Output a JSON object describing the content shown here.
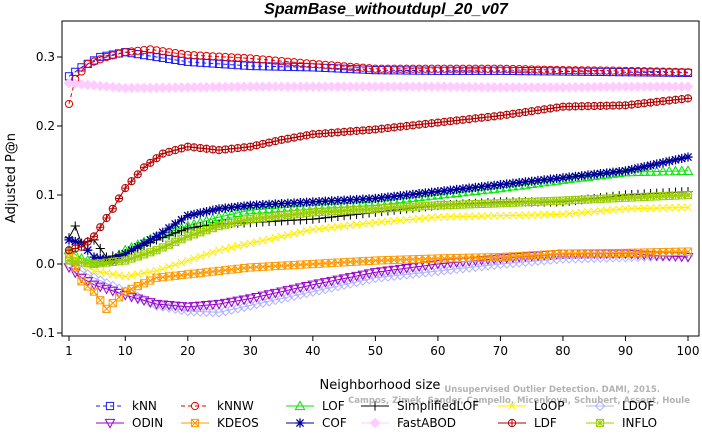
{
  "chart_data": {
    "type": "line",
    "title": "SpamBase_withoutdupl_20_v07",
    "xlabel": "Neighborhood size",
    "ylabel": "Adjusted P@n",
    "xlim": [
      1,
      100
    ],
    "ylim": [
      -0.1,
      0.33
    ],
    "x_ticks": [
      1,
      10,
      20,
      30,
      40,
      50,
      60,
      70,
      80,
      90,
      100
    ],
    "y_ticks": [
      -0.1,
      0.0,
      0.1,
      0.2,
      0.3
    ],
    "y_tick_labels": [
      "-0.1",
      "0.0",
      "0.1",
      "0.2",
      "0.3"
    ],
    "grid": false,
    "legend_position": "bottom",
    "credit_lines": [
      "Campos, Zimek, Sander, Campello, Micenkova, Schubert, Assent, Houle",
      "Unsupervised Outlier Detection. DAMI, 2015."
    ],
    "series": [
      {
        "name": "kNN",
        "color": "#1a1aff",
        "marker": "square",
        "dashed": true,
        "points": [
          [
            1,
            0.272
          ],
          [
            3,
            0.285
          ],
          [
            6,
            0.3
          ],
          [
            10,
            0.307
          ],
          [
            15,
            0.3
          ],
          [
            20,
            0.293
          ],
          [
            30,
            0.287
          ],
          [
            40,
            0.285
          ],
          [
            50,
            0.281
          ],
          [
            60,
            0.28
          ],
          [
            70,
            0.28
          ],
          [
            80,
            0.279
          ],
          [
            90,
            0.278
          ],
          [
            100,
            0.277
          ]
        ]
      },
      {
        "name": "kNNW",
        "color": "#e60000",
        "marker": "circle",
        "dashed": true,
        "points": [
          [
            1,
            0.232
          ],
          [
            2,
            0.268
          ],
          [
            4,
            0.29
          ],
          [
            7,
            0.3
          ],
          [
            10,
            0.307
          ],
          [
            14,
            0.311
          ],
          [
            20,
            0.303
          ],
          [
            30,
            0.298
          ],
          [
            40,
            0.29
          ],
          [
            50,
            0.283
          ],
          [
            60,
            0.283
          ],
          [
            70,
            0.283
          ],
          [
            80,
            0.281
          ],
          [
            90,
            0.28
          ],
          [
            100,
            0.278
          ]
        ]
      },
      {
        "name": "LOF",
        "color": "#00e600",
        "marker": "triangle-up",
        "points": [
          [
            1,
            0.02
          ],
          [
            3,
            0.008
          ],
          [
            5,
            0.002
          ],
          [
            8,
            0.006
          ],
          [
            10,
            0.02
          ],
          [
            15,
            0.04
          ],
          [
            20,
            0.055
          ],
          [
            25,
            0.068
          ],
          [
            30,
            0.078
          ],
          [
            40,
            0.085
          ],
          [
            50,
            0.09
          ],
          [
            60,
            0.1
          ],
          [
            70,
            0.11
          ],
          [
            80,
            0.122
          ],
          [
            90,
            0.133
          ],
          [
            100,
            0.135
          ]
        ]
      },
      {
        "name": "SimplifiedLOF",
        "color": "#000000",
        "marker": "plus",
        "points": [
          [
            1,
            0.038
          ],
          [
            2,
            0.055
          ],
          [
            3,
            0.03
          ],
          [
            5,
            0.035
          ],
          [
            7,
            0.01
          ],
          [
            10,
            0.015
          ],
          [
            15,
            0.035
          ],
          [
            20,
            0.052
          ],
          [
            25,
            0.058
          ],
          [
            30,
            0.06
          ],
          [
            40,
            0.065
          ],
          [
            50,
            0.075
          ],
          [
            60,
            0.085
          ],
          [
            70,
            0.09
          ],
          [
            80,
            0.09
          ],
          [
            90,
            0.1
          ],
          [
            100,
            0.105
          ]
        ]
      },
      {
        "name": "LoOP",
        "color": "#ffee00",
        "marker": "x",
        "points": [
          [
            1,
            0.015
          ],
          [
            5,
            -0.01
          ],
          [
            10,
            -0.018
          ],
          [
            15,
            -0.01
          ],
          [
            20,
            0.005
          ],
          [
            25,
            0.02
          ],
          [
            30,
            0.03
          ],
          [
            40,
            0.05
          ],
          [
            50,
            0.06
          ],
          [
            60,
            0.068
          ],
          [
            70,
            0.07
          ],
          [
            80,
            0.072
          ],
          [
            90,
            0.08
          ],
          [
            100,
            0.082
          ]
        ]
      },
      {
        "name": "LDOF",
        "color": "#b3b3ff",
        "marker": "diamond",
        "points": [
          [
            1,
            0.0
          ],
          [
            5,
            -0.02
          ],
          [
            10,
            -0.04
          ],
          [
            15,
            -0.06
          ],
          [
            20,
            -0.068
          ],
          [
            25,
            -0.07
          ],
          [
            30,
            -0.06
          ],
          [
            40,
            -0.04
          ],
          [
            50,
            -0.02
          ],
          [
            60,
            -0.01
          ],
          [
            70,
            0.0
          ],
          [
            80,
            0.008
          ],
          [
            90,
            0.01
          ],
          [
            100,
            0.012
          ]
        ]
      },
      {
        "name": "ODIN",
        "color": "#9900cc",
        "marker": "triangle-down",
        "points": [
          [
            1,
            -0.005
          ],
          [
            3,
            -0.02
          ],
          [
            5,
            -0.03
          ],
          [
            10,
            -0.045
          ],
          [
            15,
            -0.058
          ],
          [
            20,
            -0.062
          ],
          [
            25,
            -0.058
          ],
          [
            30,
            -0.05
          ],
          [
            40,
            -0.03
          ],
          [
            50,
            -0.012
          ],
          [
            60,
            0.0
          ],
          [
            70,
            0.008
          ],
          [
            80,
            0.015
          ],
          [
            90,
            0.015
          ],
          [
            100,
            0.01
          ]
        ]
      },
      {
        "name": "KDEOS",
        "color": "#ff9900",
        "marker": "square-x",
        "points": [
          [
            1,
            0.015
          ],
          [
            3,
            -0.025
          ],
          [
            5,
            -0.04
          ],
          [
            7,
            -0.065
          ],
          [
            10,
            -0.04
          ],
          [
            15,
            -0.02
          ],
          [
            20,
            -0.015
          ],
          [
            25,
            -0.01
          ],
          [
            30,
            -0.005
          ],
          [
            40,
            0.0
          ],
          [
            50,
            0.005
          ],
          [
            60,
            0.008
          ],
          [
            70,
            0.01
          ],
          [
            80,
            0.015
          ],
          [
            90,
            0.016
          ],
          [
            100,
            0.018
          ]
        ]
      },
      {
        "name": "COF",
        "color": "#000099",
        "marker": "asterisk",
        "points": [
          [
            1,
            0.035
          ],
          [
            3,
            0.03
          ],
          [
            5,
            0.01
          ],
          [
            8,
            0.005
          ],
          [
            10,
            0.015
          ],
          [
            15,
            0.04
          ],
          [
            20,
            0.07
          ],
          [
            25,
            0.08
          ],
          [
            30,
            0.085
          ],
          [
            40,
            0.09
          ],
          [
            50,
            0.095
          ],
          [
            60,
            0.105
          ],
          [
            70,
            0.115
          ],
          [
            80,
            0.125
          ],
          [
            90,
            0.135
          ],
          [
            100,
            0.155
          ]
        ]
      },
      {
        "name": "FastABOD",
        "color": "#ffccff",
        "marker": "diamond-filled",
        "points": [
          [
            1,
            0.262
          ],
          [
            10,
            0.255
          ],
          [
            20,
            0.256
          ],
          [
            30,
            0.257
          ],
          [
            40,
            0.257
          ],
          [
            50,
            0.257
          ],
          [
            60,
            0.257
          ],
          [
            70,
            0.256
          ],
          [
            80,
            0.256
          ],
          [
            90,
            0.257
          ],
          [
            100,
            0.257
          ]
        ]
      },
      {
        "name": "LDF",
        "color": "#b30000",
        "marker": "circle-plus",
        "points": [
          [
            1,
            0.02
          ],
          [
            3,
            0.025
          ],
          [
            5,
            0.04
          ],
          [
            8,
            0.08
          ],
          [
            10,
            0.11
          ],
          [
            13,
            0.14
          ],
          [
            16,
            0.16
          ],
          [
            20,
            0.17
          ],
          [
            25,
            0.165
          ],
          [
            30,
            0.17
          ],
          [
            35,
            0.18
          ],
          [
            40,
            0.188
          ],
          [
            50,
            0.195
          ],
          [
            60,
            0.205
          ],
          [
            70,
            0.215
          ],
          [
            80,
            0.228
          ],
          [
            90,
            0.23
          ],
          [
            100,
            0.24
          ]
        ]
      },
      {
        "name": "INFLO",
        "color": "#99cc00",
        "marker": "square-star",
        "points": [
          [
            1,
            0.005
          ],
          [
            5,
            0.0
          ],
          [
            10,
            0.005
          ],
          [
            15,
            0.02
          ],
          [
            20,
            0.04
          ],
          [
            25,
            0.055
          ],
          [
            30,
            0.065
          ],
          [
            40,
            0.075
          ],
          [
            50,
            0.08
          ],
          [
            60,
            0.085
          ],
          [
            70,
            0.088
          ],
          [
            80,
            0.092
          ],
          [
            90,
            0.096
          ],
          [
            100,
            0.1
          ]
        ]
      }
    ],
    "legend_order": [
      "kNN",
      "kNNW",
      "LOF",
      "SimplifiedLOF",
      "LoOP",
      "LDOF",
      "ODIN",
      "KDEOS",
      "COF",
      "FastABOD",
      "LDF",
      "INFLO"
    ]
  }
}
